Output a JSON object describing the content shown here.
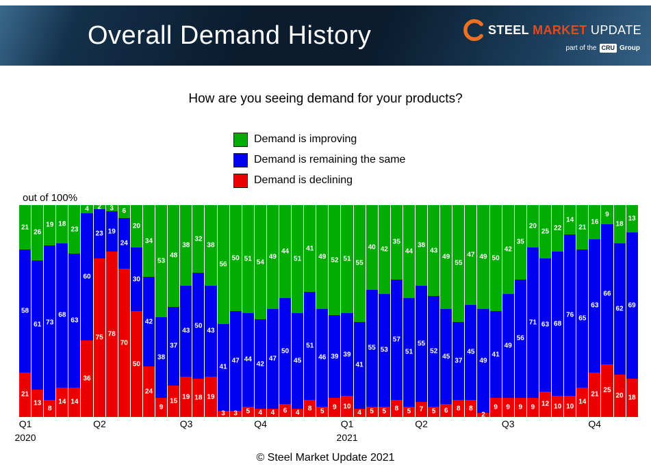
{
  "header": {
    "title": "Overall Demand History",
    "logo": {
      "steel": "STEEL",
      "market": "MARKET",
      "update": "UPDATE",
      "tagline_prefix": "part of the",
      "tagline_cru": "CRU",
      "tagline_suffix": "Group",
      "swoosh_color": "#ee7121"
    }
  },
  "subtitle": "How are you seeing demand for your products?",
  "legend": [
    {
      "label": "Demand is improving",
      "color": "#00ac00"
    },
    {
      "label": "Demand is remaining the same",
      "color": "#0000f0"
    },
    {
      "label": "Demand is declining",
      "color": "#ef0000"
    }
  ],
  "axis_note": "out of 100%",
  "chart_data": {
    "type": "bar",
    "stacked": true,
    "stack_total": 100,
    "bar_count": 50,
    "title": "How are you seeing demand for your products?",
    "ylabel": "out of 100%",
    "legend_position": "top-center",
    "series": [
      {
        "name": "Demand is improving",
        "key": "improving",
        "color": "#00ac00",
        "values": [
          21,
          26,
          19,
          18,
          23,
          4,
          2,
          3,
          6,
          20,
          34,
          53,
          48,
          38,
          32,
          38,
          56,
          50,
          51,
          54,
          49,
          44,
          51,
          41,
          49,
          52,
          51,
          55,
          40,
          42,
          35,
          44,
          38,
          43,
          49,
          55,
          47,
          49,
          50,
          42,
          35,
          20,
          25,
          22,
          14,
          21,
          16,
          9,
          18,
          13
        ]
      },
      {
        "name": "Demand is remaining the same",
        "key": "same",
        "color": "#0000f0",
        "values": [
          58,
          61,
          73,
          68,
          63,
          60,
          23,
          19,
          24,
          30,
          42,
          38,
          37,
          43,
          50,
          43,
          41,
          47,
          44,
          42,
          47,
          50,
          45,
          51,
          46,
          39,
          39,
          41,
          55,
          53,
          57,
          51,
          55,
          52,
          45,
          37,
          45,
          49,
          41,
          49,
          56,
          71,
          63,
          68,
          76,
          65,
          63,
          66,
          62,
          69
        ]
      },
      {
        "name": "Demand is declining",
        "key": "declining",
        "color": "#ef0000",
        "values": [
          21,
          13,
          8,
          14,
          14,
          36,
          75,
          78,
          70,
          50,
          24,
          9,
          15,
          19,
          18,
          19,
          3,
          3,
          5,
          4,
          4,
          6,
          4,
          8,
          5,
          9,
          10,
          4,
          5,
          5,
          8,
          5,
          7,
          5,
          6,
          8,
          8,
          2,
          9,
          9,
          9,
          9,
          12,
          10,
          10,
          14,
          21,
          25,
          20,
          18
        ]
      }
    ],
    "x_ticks": [
      {
        "index": 0,
        "label": "Q1",
        "year": "2020"
      },
      {
        "index": 6,
        "label": "Q2"
      },
      {
        "index": 13,
        "label": "Q3"
      },
      {
        "index": 19,
        "label": "Q4"
      },
      {
        "index": 26,
        "label": "Q1",
        "year": "2021"
      },
      {
        "index": 32,
        "label": "Q2"
      },
      {
        "index": 39,
        "label": "Q3"
      },
      {
        "index": 46,
        "label": "Q4"
      }
    ]
  },
  "footer": "© Steel Market Update 2021"
}
